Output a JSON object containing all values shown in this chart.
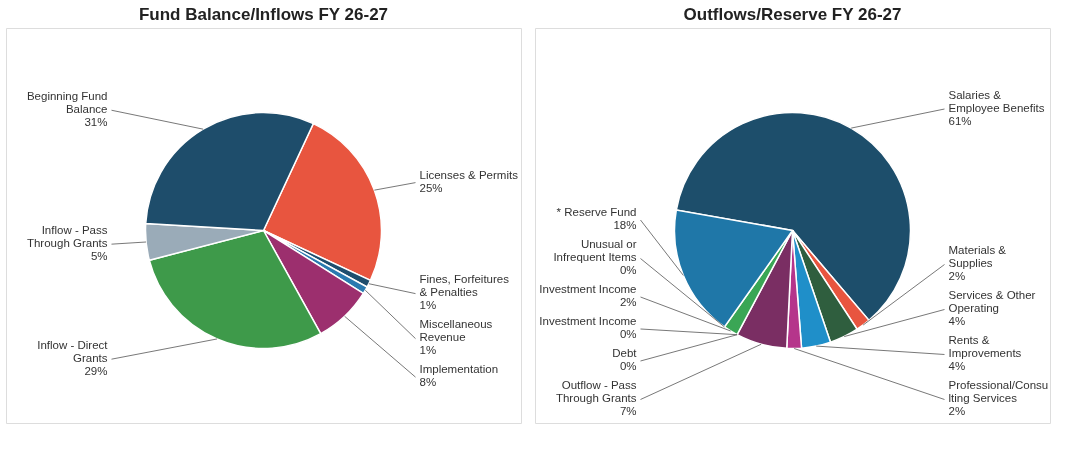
{
  "chart_data": [
    {
      "type": "pie",
      "title": "Fund Balance/Inflows FY 26-27",
      "categories": [
        "Licenses & Permits",
        "Fines, Forfeitures & Penalties",
        "Miscellaneous Revenue",
        "Implementation",
        "Inflow - Direct Grants",
        "Inflow - Pass Through Grants",
        "Beginning Fund Balance"
      ],
      "values": [
        25,
        1,
        1,
        8,
        29,
        5,
        31
      ],
      "value_labels": [
        "25%",
        "1%",
        "1%",
        "8%",
        "29%",
        "5%",
        "31%"
      ],
      "colors": [
        "#e8553f",
        "#1f4e6e",
        "#2a7ab0",
        "#9c2f6e",
        "#3e9a4a",
        "#9aabb8",
        "#1e4d6b"
      ]
    },
    {
      "type": "pie",
      "title": "Outflows/Reserve FY 26-27",
      "categories": [
        "Salaries & Employee Benefits",
        "Materials & Supplies",
        "Services & Other Operating",
        "Rents & Improvements",
        "Professional/Consulting Services",
        "Outflow - Pass Through Grants",
        "Investment Income",
        "Debt",
        "Investment Income",
        "Unusual or Infrequent Items",
        "* Reserve Fund"
      ],
      "values": [
        61,
        2,
        4,
        4,
        2,
        7,
        0,
        0,
        2,
        0,
        18
      ],
      "value_labels": [
        "61%",
        "2%",
        "4%",
        "4%",
        "2%",
        "7%",
        "0%",
        "0%",
        "2%",
        "0%",
        "18%"
      ],
      "colors": [
        "#1d4e6b",
        "#e8553f",
        "#2f5e3e",
        "#1f8fc9",
        "#b5358b",
        "#7a2e63",
        "#5b8f3a",
        "#444444",
        "#3aa655",
        "#888888",
        "#1f77a8"
      ]
    }
  ]
}
